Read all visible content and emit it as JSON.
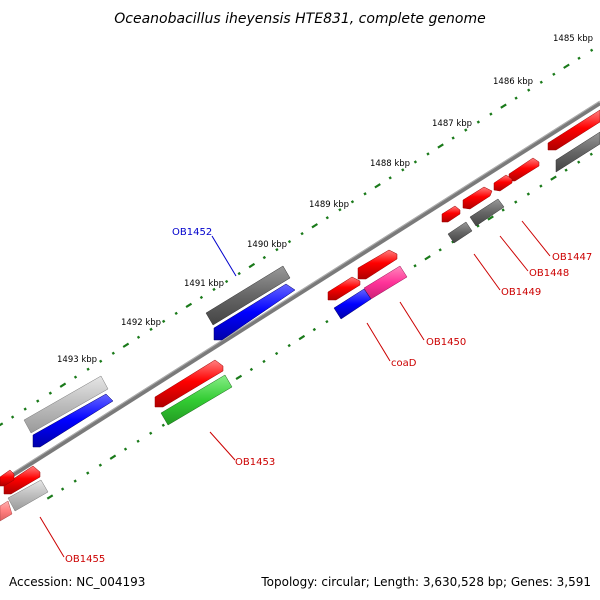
{
  "title": "Oceanobacillus iheyensis HTE831, complete genome",
  "footer": {
    "accession": "Accession: NC_004193",
    "summary": "Topology: circular; Length: 3,630,528 bp; Genes: 3,591"
  },
  "colors": {
    "forward_red": "#ff0000",
    "reverse_red": "#ff0000",
    "dark_gray": "#666666",
    "light_gray": "#bdbdbd",
    "blue": "#0000ff",
    "green": "#33cc33",
    "magenta": "#ff3399",
    "label_red": "#cc0000",
    "label_blue": "#0000cc",
    "tick_green": "#008000",
    "backbone": "#808080"
  },
  "ruler_labels": [
    "1485 kbp",
    "1486 kbp",
    "1487 kbp",
    "1488 kbp",
    "1489 kbp",
    "1490 kbp",
    "1491 kbp",
    "1492 kbp",
    "1493 kbp"
  ],
  "gene_labels": [
    {
      "text": "OB1452",
      "color": "blue"
    },
    {
      "text": "OB1447",
      "color": "red"
    },
    {
      "text": "OB1448",
      "color": "red"
    },
    {
      "text": "OB1449",
      "color": "red"
    },
    {
      "text": "OB1450",
      "color": "red"
    },
    {
      "text": "coaD",
      "color": "red"
    },
    {
      "text": "OB1453",
      "color": "red"
    },
    {
      "text": "OB1455",
      "color": "red"
    }
  ]
}
